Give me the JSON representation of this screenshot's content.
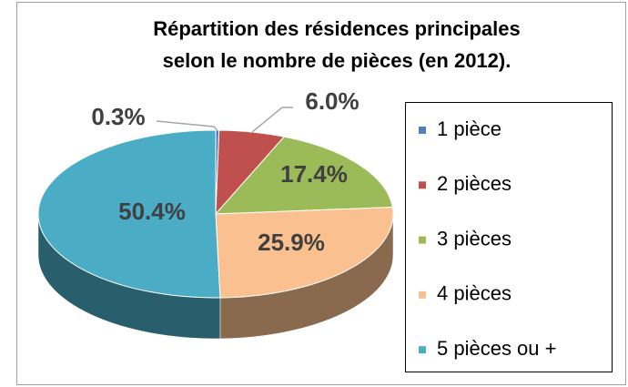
{
  "chart_data": {
    "type": "pie3d",
    "title": [
      "Répartition des résidences principales",
      "selon le nombre de pièces (en 2012)."
    ],
    "categories": [
      "1 pièce",
      "2 pièces",
      "3 pièces",
      "4 pièces",
      "5 pièces ou +"
    ],
    "values": [
      0.3,
      6.0,
      17.4,
      25.9,
      50.4
    ],
    "value_labels": [
      "0.3%",
      "6.0%",
      "17.4%",
      "25.9%",
      "50.4%"
    ],
    "colors": [
      "#4f81bd",
      "#c0504d",
      "#9bbb59",
      "#fac090",
      "#4bacc6"
    ],
    "legend": "right"
  }
}
